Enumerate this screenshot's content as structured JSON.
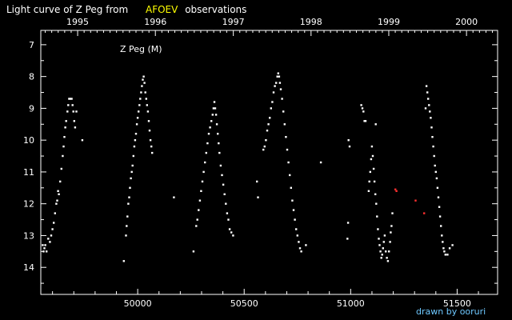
{
  "title": {
    "part1": "Light curve of Z Peg from",
    "part2": "AFOEV",
    "part3": "observations"
  },
  "colors": {
    "background": "#000000",
    "foreground": "#ffffff",
    "highlight": "#ffff00",
    "credit": "#6ec8ff",
    "outlier": "#ff3030"
  },
  "credit": "drawn by ooruri",
  "chart_data": {
    "type": "scatter",
    "title": "Light curve of Z Peg from AFOEV observations",
    "xlabel": "",
    "ylabel": "",
    "grid": false,
    "inplot_label": "Z Peg (M)",
    "xlim": [
      49545,
      51690
    ],
    "ylim": [
      14.85,
      6.55
    ],
    "y_inverted": true,
    "x_ticks": [
      50000,
      50500,
      51000,
      51500
    ],
    "x_tick_labels": [
      "50000",
      "50500",
      "51000",
      "51500"
    ],
    "y_ticks": [
      7,
      8,
      9,
      10,
      11,
      12,
      13,
      14
    ],
    "y_tick_labels": [
      "7",
      "8",
      "9",
      "10",
      "11",
      "12",
      "13",
      "14"
    ],
    "top_axis_years": [
      {
        "label": "1995",
        "jd": 49718
      },
      {
        "label": "1996",
        "jd": 50083
      },
      {
        "label": "1997",
        "jd": 50449
      },
      {
        "label": "1998",
        "jd": 50814
      },
      {
        "label": "1999",
        "jd": 51179
      },
      {
        "label": "2000",
        "jd": 51544
      }
    ],
    "series": [
      {
        "values": [
          [
            49554,
            13.3
          ],
          [
            49558,
            13.5
          ],
          [
            49562,
            13.4
          ],
          [
            49566,
            13.3
          ],
          [
            49572,
            13.5
          ],
          [
            49580,
            13.1
          ],
          [
            49588,
            13.2
          ],
          [
            49594,
            13.0
          ],
          [
            49600,
            12.8
          ],
          [
            49606,
            12.6
          ],
          [
            49612,
            12.3
          ],
          [
            49618,
            12.0
          ],
          [
            49622,
            11.9
          ],
          [
            49626,
            11.6
          ],
          [
            49630,
            11.7
          ],
          [
            49636,
            11.3
          ],
          [
            49642,
            10.9
          ],
          [
            49648,
            10.5
          ],
          [
            49652,
            10.2
          ],
          [
            49656,
            9.9
          ],
          [
            49660,
            9.6
          ],
          [
            49664,
            9.4
          ],
          [
            49670,
            9.1
          ],
          [
            49674,
            8.9
          ],
          [
            49678,
            8.7
          ],
          [
            49684,
            8.7
          ],
          [
            49690,
            8.7
          ],
          [
            49694,
            8.9
          ],
          [
            49698,
            9.1
          ],
          [
            49702,
            9.4
          ],
          [
            49706,
            9.6
          ],
          [
            49712,
            9.1
          ],
          [
            49740,
            10.0
          ],
          [
            49935,
            13.8
          ],
          [
            49945,
            13.0
          ],
          [
            49948,
            12.7
          ],
          [
            49952,
            12.4
          ],
          [
            49956,
            12.0
          ],
          [
            49960,
            11.8
          ],
          [
            49964,
            11.5
          ],
          [
            49968,
            11.2
          ],
          [
            49972,
            11.0
          ],
          [
            49976,
            10.8
          ],
          [
            49980,
            10.5
          ],
          [
            49984,
            10.2
          ],
          [
            49988,
            10.0
          ],
          [
            49992,
            9.8
          ],
          [
            49996,
            9.5
          ],
          [
            50000,
            9.3
          ],
          [
            50004,
            9.1
          ],
          [
            50008,
            8.9
          ],
          [
            50012,
            8.7
          ],
          [
            50016,
            8.5
          ],
          [
            50020,
            8.3
          ],
          [
            50024,
            8.1
          ],
          [
            50028,
            8.0
          ],
          [
            50032,
            8.2
          ],
          [
            50036,
            8.5
          ],
          [
            50040,
            8.7
          ],
          [
            50044,
            8.9
          ],
          [
            50048,
            9.1
          ],
          [
            50052,
            9.4
          ],
          [
            50056,
            9.7
          ],
          [
            50060,
            10.0
          ],
          [
            50064,
            10.2
          ],
          [
            50068,
            10.4
          ],
          [
            50170,
            11.8
          ],
          [
            50262,
            13.5
          ],
          [
            50275,
            12.7
          ],
          [
            50280,
            12.5
          ],
          [
            50286,
            12.2
          ],
          [
            50292,
            11.9
          ],
          [
            50298,
            11.6
          ],
          [
            50304,
            11.3
          ],
          [
            50310,
            11.0
          ],
          [
            50316,
            10.7
          ],
          [
            50322,
            10.4
          ],
          [
            50328,
            10.1
          ],
          [
            50334,
            9.8
          ],
          [
            50340,
            9.6
          ],
          [
            50346,
            9.4
          ],
          [
            50352,
            9.2
          ],
          [
            50356,
            9.0
          ],
          [
            50360,
            8.8
          ],
          [
            50364,
            9.0
          ],
          [
            50368,
            9.2
          ],
          [
            50372,
            9.5
          ],
          [
            50376,
            9.8
          ],
          [
            50380,
            10.1
          ],
          [
            50384,
            10.4
          ],
          [
            50390,
            10.8
          ],
          [
            50396,
            11.1
          ],
          [
            50402,
            11.4
          ],
          [
            50408,
            11.7
          ],
          [
            50414,
            12.0
          ],
          [
            50420,
            12.3
          ],
          [
            50426,
            12.5
          ],
          [
            50432,
            12.8
          ],
          [
            50440,
            12.9
          ],
          [
            50448,
            13.0
          ],
          [
            50560,
            11.3
          ],
          [
            50565,
            11.8
          ],
          [
            50590,
            10.3
          ],
          [
            50596,
            10.2
          ],
          [
            50602,
            10.0
          ],
          [
            50608,
            9.7
          ],
          [
            50614,
            9.5
          ],
          [
            50620,
            9.3
          ],
          [
            50626,
            9.0
          ],
          [
            50632,
            8.8
          ],
          [
            50638,
            8.5
          ],
          [
            50644,
            8.3
          ],
          [
            50650,
            8.2
          ],
          [
            50656,
            8.0
          ],
          [
            50660,
            7.9
          ],
          [
            50664,
            8.0
          ],
          [
            50668,
            8.2
          ],
          [
            50672,
            8.4
          ],
          [
            50678,
            8.7
          ],
          [
            50684,
            9.1
          ],
          [
            50690,
            9.5
          ],
          [
            50696,
            9.9
          ],
          [
            50702,
            10.3
          ],
          [
            50708,
            10.7
          ],
          [
            50714,
            11.1
          ],
          [
            50720,
            11.5
          ],
          [
            50726,
            11.9
          ],
          [
            50732,
            12.2
          ],
          [
            50738,
            12.5
          ],
          [
            50744,
            12.8
          ],
          [
            50750,
            13.0
          ],
          [
            50756,
            13.2
          ],
          [
            50762,
            13.4
          ],
          [
            50768,
            13.5
          ],
          [
            50790,
            13.3
          ],
          [
            50860,
            10.7
          ],
          [
            50985,
            13.1
          ],
          [
            50988,
            12.6
          ],
          [
            50990,
            10.0
          ],
          [
            50995,
            10.2
          ],
          [
            51050,
            8.9
          ],
          [
            51055,
            9.0
          ],
          [
            51060,
            9.1
          ],
          [
            51065,
            9.4
          ],
          [
            51070,
            9.4
          ],
          [
            51085,
            11.6
          ],
          [
            51088,
            11.3
          ],
          [
            51092,
            11.0
          ],
          [
            51096,
            10.6
          ],
          [
            51100,
            10.2
          ],
          [
            51104,
            10.5
          ],
          [
            51108,
            10.9
          ],
          [
            51112,
            11.3
          ],
          [
            51116,
            11.7
          ],
          [
            51120,
            12.0
          ],
          [
            51124,
            12.4
          ],
          [
            51128,
            12.8
          ],
          [
            51132,
            13.1
          ],
          [
            51136,
            13.3
          ],
          [
            51140,
            13.5
          ],
          [
            51144,
            13.7
          ],
          [
            51148,
            13.6
          ],
          [
            51152,
            13.4
          ],
          [
            51156,
            13.2
          ],
          [
            51160,
            13.0
          ],
          [
            51165,
            13.5
          ],
          [
            51170,
            13.7
          ],
          [
            51175,
            13.8
          ],
          [
            51180,
            13.5
          ],
          [
            51185,
            13.2
          ],
          [
            51188,
            12.9
          ],
          [
            51192,
            12.7
          ],
          [
            51196,
            12.3
          ],
          [
            51118,
            9.5
          ],
          [
            51352,
            9.0
          ],
          [
            51356,
            8.3
          ],
          [
            51360,
            8.5
          ],
          [
            51364,
            8.7
          ],
          [
            51368,
            8.9
          ],
          [
            51372,
            9.1
          ],
          [
            51376,
            9.3
          ],
          [
            51380,
            9.6
          ],
          [
            51384,
            9.9
          ],
          [
            51388,
            10.2
          ],
          [
            51392,
            10.5
          ],
          [
            51396,
            10.8
          ],
          [
            51400,
            11.0
          ],
          [
            51404,
            11.2
          ],
          [
            51408,
            11.5
          ],
          [
            51412,
            11.8
          ],
          [
            51416,
            12.1
          ],
          [
            51420,
            12.4
          ],
          [
            51424,
            12.7
          ],
          [
            51428,
            13.0
          ],
          [
            51432,
            13.2
          ],
          [
            51436,
            13.4
          ],
          [
            51440,
            13.5
          ],
          [
            51445,
            13.6
          ],
          [
            51455,
            13.6
          ],
          [
            51465,
            13.4
          ],
          [
            51478,
            13.3
          ]
        ]
      },
      {
        "values": [
          [
            51210,
            11.55
          ],
          [
            51215,
            11.6
          ],
          [
            51305,
            11.9
          ],
          [
            51345,
            12.3
          ]
        ]
      }
    ]
  }
}
